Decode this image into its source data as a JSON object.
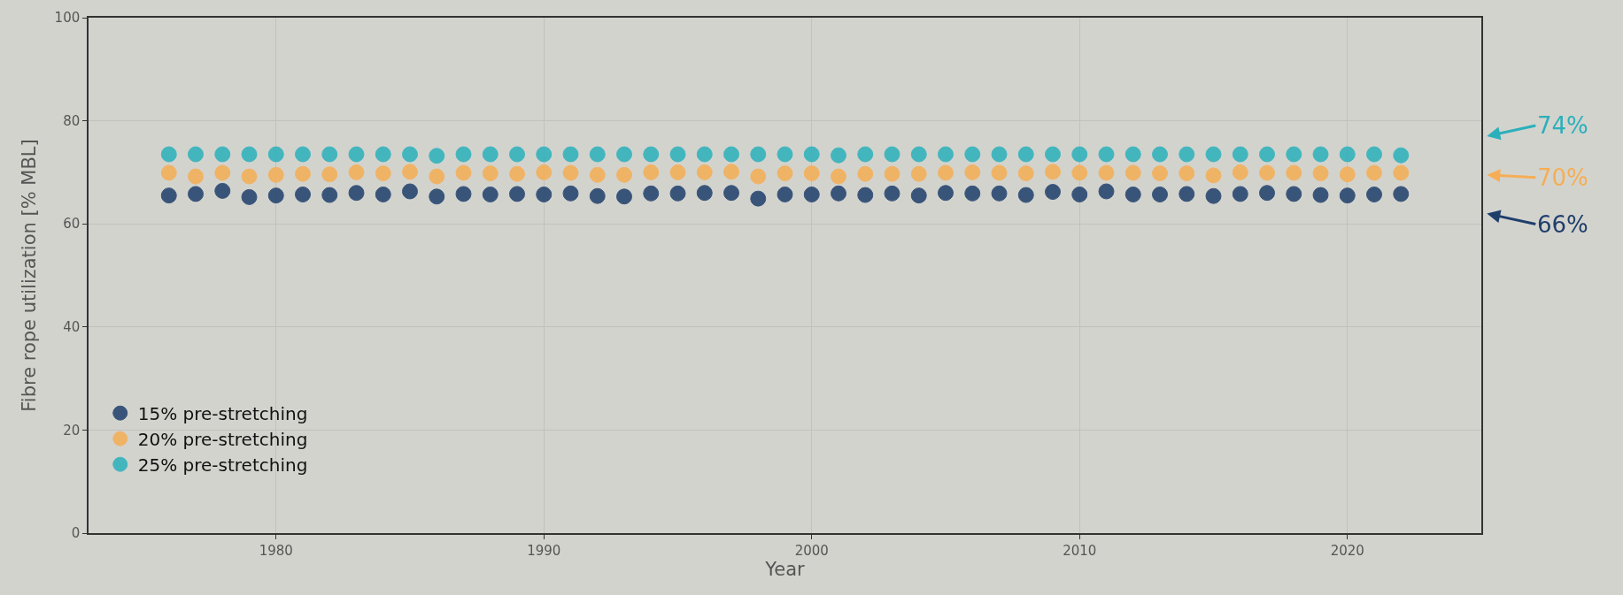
{
  "chart_data": {
    "type": "scatter",
    "xlabel": "Year",
    "ylabel": "Fibre rope utilization [% MBL]",
    "x": [
      1976,
      1977,
      1978,
      1979,
      1980,
      1981,
      1982,
      1983,
      1984,
      1985,
      1986,
      1987,
      1988,
      1989,
      1990,
      1991,
      1992,
      1993,
      1994,
      1995,
      1996,
      1997,
      1998,
      1999,
      2000,
      2001,
      2002,
      2003,
      2004,
      2005,
      2006,
      2007,
      2008,
      2009,
      2010,
      2011,
      2012,
      2013,
      2014,
      2015,
      2016,
      2017,
      2018,
      2019,
      2020,
      2021,
      2022
    ],
    "series": [
      {
        "name": "15% pre-stretching",
        "color": "#1f3f6b",
        "values": [
          65.5,
          65.8,
          66.4,
          65.2,
          65.5,
          65.7,
          65.6,
          66.0,
          65.7,
          66.3,
          65.3,
          65.8,
          65.7,
          65.8,
          65.7,
          65.9,
          65.4,
          65.3,
          65.9,
          65.9,
          66.0,
          66.0,
          64.9,
          65.7,
          65.7,
          65.9,
          65.6,
          65.9,
          65.5,
          66.0,
          65.9,
          65.9,
          65.6,
          66.2,
          65.7,
          66.3,
          65.7,
          65.7,
          65.8,
          65.4,
          65.8,
          66.0,
          65.8,
          65.6,
          65.5,
          65.7,
          65.8
        ]
      },
      {
        "name": "20% pre-stretching",
        "color": "#f5ae55",
        "values": [
          69.9,
          69.2,
          69.9,
          69.2,
          69.5,
          69.7,
          69.6,
          70.0,
          69.8,
          70.1,
          69.2,
          69.9,
          69.8,
          69.7,
          70.0,
          69.9,
          69.5,
          69.5,
          70.0,
          70.0,
          70.0,
          70.1,
          69.2,
          69.8,
          69.8,
          69.2,
          69.7,
          69.7,
          69.7,
          69.9,
          70.0,
          69.9,
          69.8,
          70.1,
          69.9,
          69.9,
          69.9,
          69.8,
          69.8,
          69.4,
          70.0,
          69.9,
          69.9,
          69.8,
          69.6,
          69.9,
          69.9
        ]
      },
      {
        "name": "25% pre-stretching",
        "color": "#2bb0bb",
        "values": [
          73.5,
          73.5,
          73.5,
          73.5,
          73.5,
          73.5,
          73.5,
          73.5,
          73.5,
          73.5,
          73.2,
          73.5,
          73.5,
          73.5,
          73.5,
          73.5,
          73.5,
          73.5,
          73.5,
          73.5,
          73.5,
          73.5,
          73.5,
          73.5,
          73.5,
          73.3,
          73.5,
          73.5,
          73.5,
          73.5,
          73.5,
          73.5,
          73.5,
          73.5,
          73.5,
          73.5,
          73.5,
          73.5,
          73.5,
          73.5,
          73.5,
          73.5,
          73.5,
          73.5,
          73.5,
          73.5,
          73.3
        ]
      }
    ],
    "annotations": [
      "74%",
      "70%",
      "66%"
    ],
    "xlim": [
      1973,
      2025
    ],
    "xticks": [
      1980,
      1990,
      2000,
      2010,
      2020
    ],
    "ylim": [
      0,
      100
    ],
    "yticks": [
      0,
      20,
      40,
      60,
      80,
      100
    ],
    "grid": true,
    "legend": "bottom left",
    "marker": "circle"
  }
}
